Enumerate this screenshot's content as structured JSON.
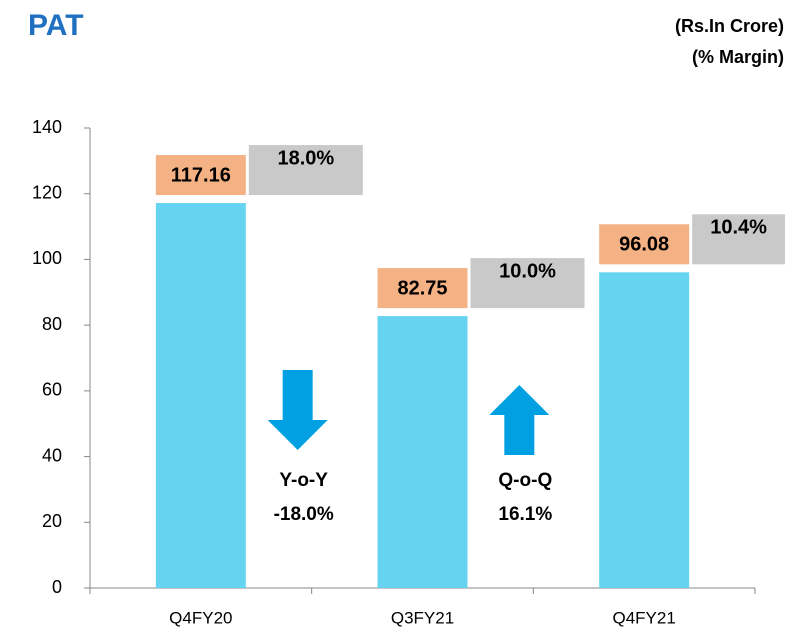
{
  "chart_data": {
    "type": "bar",
    "title": "PAT",
    "subtitle": [
      "(Rs.In Crore)",
      "(% Margin)"
    ],
    "categories": [
      "Q4FY20",
      "Q3FY21",
      "Q4FY21"
    ],
    "values": [
      117.16,
      82.75,
      96.08
    ],
    "color": "#66d4f0",
    "margin_values": [
      18.0,
      10.0,
      10.4
    ],
    "margin_labels": [
      "18.0%",
      "10.0%",
      "10.4%"
    ],
    "ylim": [
      0,
      140
    ],
    "yticks": [
      0,
      20,
      40,
      60,
      80,
      100,
      120,
      140
    ],
    "annotations": [
      {
        "lines": [
          "Y-o-Y",
          "-18.0%"
        ],
        "direction": "down"
      },
      {
        "lines": [
          "Q-o-Q",
          "16.1%"
        ],
        "direction": "up"
      }
    ]
  }
}
